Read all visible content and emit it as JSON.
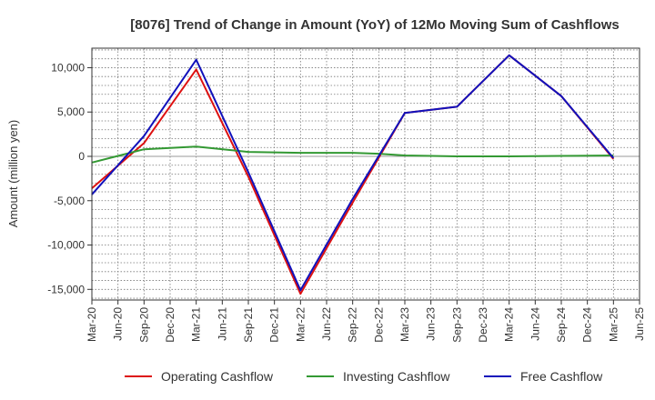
{
  "chart_data": {
    "type": "line",
    "title": "[8076]  Trend of Change in Amount (YoY) of 12Mo Moving Sum of Cashflows",
    "xlabel": "",
    "ylabel": "Amount (million yen)",
    "ylim": [
      -16200,
      12200
    ],
    "yticks": [
      10000,
      5000,
      0,
      -5000,
      -10000,
      -15000
    ],
    "ytick_labels": [
      "10,000",
      "5,000",
      "0",
      "-5,000",
      "-10,000",
      "-15,000"
    ],
    "x_labels": [
      "Mar-20",
      "Jun-20",
      "Sep-20",
      "Dec-20",
      "Mar-21",
      "Jun-21",
      "Sep-21",
      "Dec-21",
      "Mar-22",
      "Jun-22",
      "Sep-22",
      "Dec-22",
      "Mar-23",
      "Jun-23",
      "Sep-23",
      "Dec-23",
      "Mar-24",
      "Jun-24",
      "Sep-24",
      "Dec-24",
      "Mar-25",
      "Jun-25"
    ],
    "grid": true,
    "legend_position": "bottom",
    "series": [
      {
        "name": "Operating Cashflow",
        "color": "#dd1111",
        "points": [
          [
            0,
            -3600
          ],
          [
            2,
            1500
          ],
          [
            4,
            9800
          ],
          [
            6,
            -2300
          ],
          [
            8,
            -15500
          ],
          [
            10,
            -5200
          ],
          [
            12,
            4900
          ],
          [
            14,
            5600
          ],
          [
            16,
            11400
          ],
          [
            18,
            6800
          ],
          [
            20,
            -300
          ]
        ]
      },
      {
        "name": "Investing Cashflow",
        "color": "#339933",
        "points": [
          [
            0,
            -700
          ],
          [
            2,
            800
          ],
          [
            4,
            1100
          ],
          [
            6,
            500
          ],
          [
            8,
            400
          ],
          [
            10,
            400
          ],
          [
            11,
            300
          ],
          [
            12,
            100
          ],
          [
            14,
            0
          ],
          [
            16,
            0
          ],
          [
            18,
            50
          ],
          [
            20,
            100
          ]
        ]
      },
      {
        "name": "Free Cashflow",
        "color": "#1111bb",
        "points": [
          [
            0,
            -4300
          ],
          [
            2,
            2300
          ],
          [
            4,
            10900
          ],
          [
            6,
            -1800
          ],
          [
            8,
            -15100
          ],
          [
            10,
            -4800
          ],
          [
            12,
            4900
          ],
          [
            14,
            5600
          ],
          [
            16,
            11400
          ],
          [
            18,
            6800
          ],
          [
            20,
            -200
          ]
        ]
      }
    ]
  }
}
